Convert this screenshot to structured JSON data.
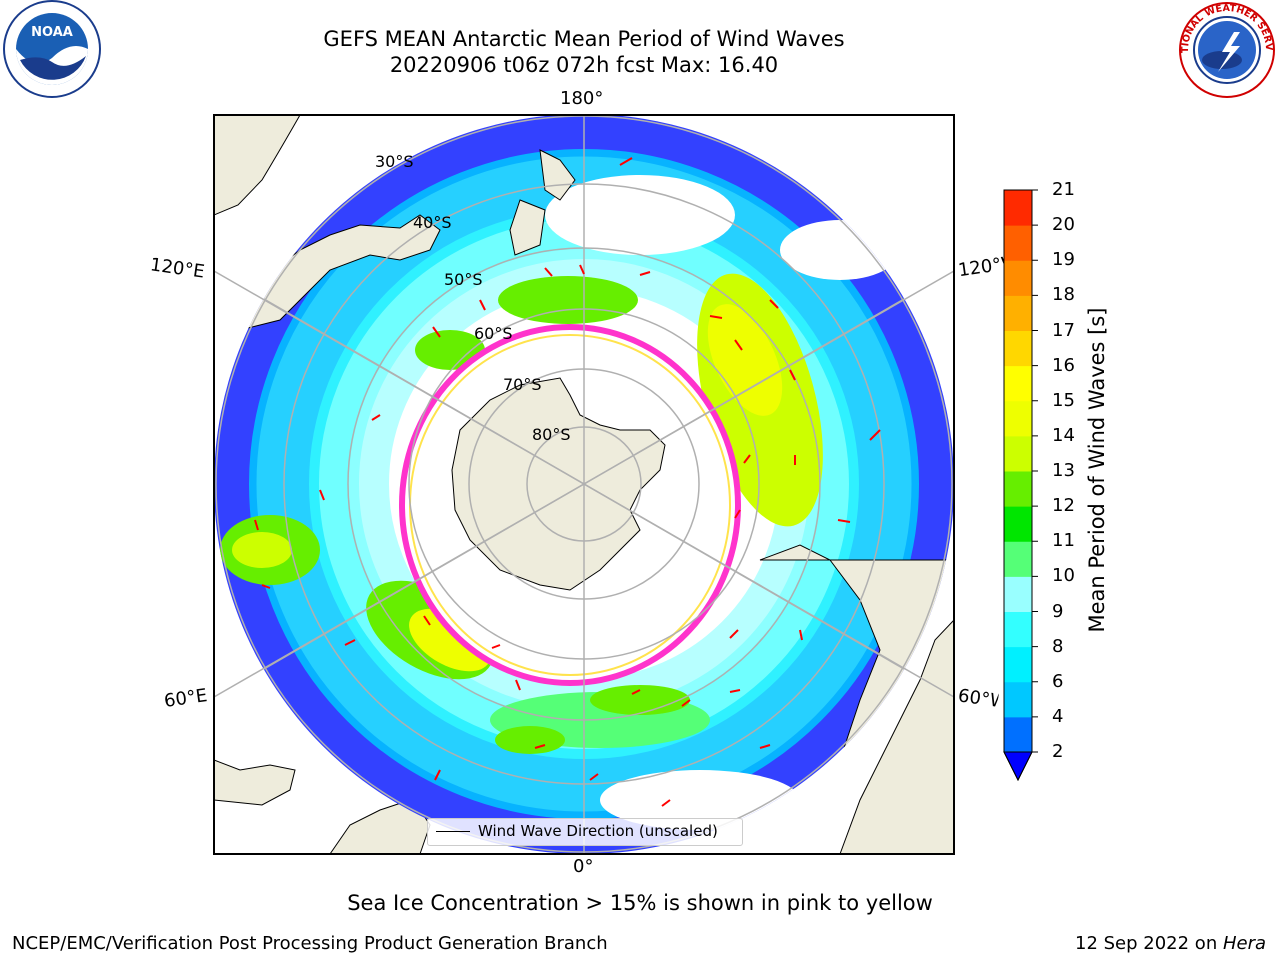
{
  "title": {
    "line1": "GEFS MEAN Antarctic Mean Period of Wind Waves",
    "line2": "20220906 t06z 072h fcst   Max: 16.40"
  },
  "logos": {
    "left": "NOAA",
    "right": "NATIONAL WEATHER SERVICE"
  },
  "map": {
    "projection": "south-polar-stereographic",
    "longitude_labels": {
      "top": "180°",
      "bottom": "0°",
      "left_upper": "120°E",
      "left_lower": "60°E",
      "right_upper": "120°W",
      "right_lower": "60°W"
    },
    "latitude_labels": [
      "30°S",
      "40°S",
      "50°S",
      "60°S",
      "70°S",
      "80°S"
    ],
    "colors": {
      "land": "#eeecdc",
      "ocean_default": "#ffffff",
      "gridline": "#b0b0b0",
      "arrow": "#ff0000",
      "sea_ice_edge": "#ff33cc"
    }
  },
  "legend": {
    "label": "Wind Wave Direction (unscaled)"
  },
  "colorbar": {
    "label": "Mean Period of Wind Waves [s]",
    "ticks": [
      "2",
      "4",
      "6",
      "8",
      "9",
      "10",
      "11",
      "12",
      "13",
      "14",
      "15",
      "16",
      "17",
      "18",
      "19",
      "20",
      "21"
    ],
    "colors": [
      "#0070ff",
      "#00c8ff",
      "#00f0ff",
      "#33ffff",
      "#99ffff",
      "#55ff77",
      "#00e600",
      "#66ee00",
      "#ccff00",
      "#eeff00",
      "#ffff00",
      "#ffd700",
      "#ffb000",
      "#ff8c00",
      "#ff6000",
      "#ff2a00"
    ],
    "under_color": "#0000ff"
  },
  "note": "Sea Ice Concentration > 15% is shown in pink to yellow",
  "footer": {
    "left": "NCEP/EMC/Verification Post Processing Product Generation Branch",
    "right_date": "12 Sep 2022 on ",
    "right_host": "Hera"
  }
}
